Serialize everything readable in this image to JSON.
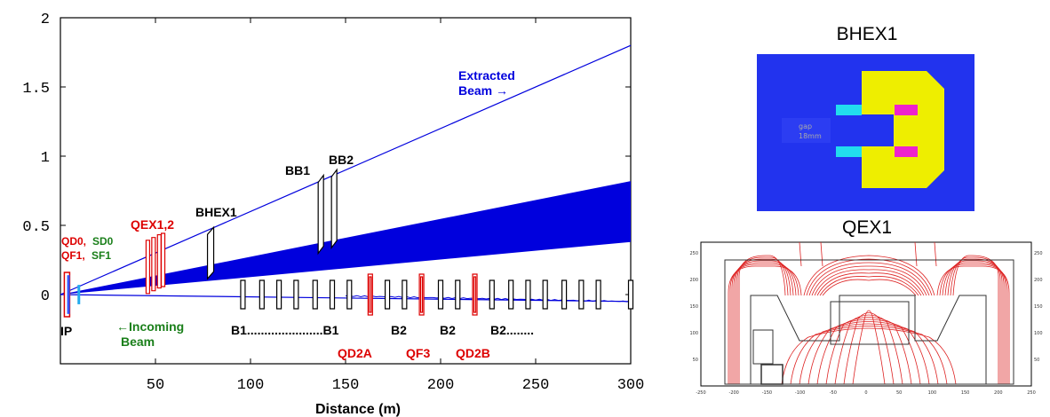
{
  "chart_data": {
    "type": "line",
    "xlabel": "Distance (m)",
    "xlim": [
      0,
      300
    ],
    "ylim": [
      -0.5,
      2
    ],
    "x_ticks": [
      "50",
      "100",
      "150",
      "200",
      "250",
      "300"
    ],
    "y_ticks": [
      "2",
      "1.5",
      "1",
      "0.5",
      "0"
    ],
    "series": [
      {
        "x": [
          0,
          300
        ],
        "y": [
          0,
          1.8
        ],
        "color": "#0000dd"
      },
      {
        "x": [
          0,
          300
        ],
        "y": [
          0,
          -0.05
        ],
        "color": "#0000dd"
      }
    ],
    "band": {
      "x": [
        0,
        300
      ],
      "upper": [
        0,
        0.82
      ],
      "lower": [
        0,
        0.38
      ],
      "color": "#0000dd"
    },
    "colors": {
      "beam": "#0000dd",
      "quad_red": "#dd0000",
      "sext_green": "#1a7f1a",
      "magnet": "#000000"
    }
  },
  "labels": {
    "extracted": [
      "Extracted",
      "Beam →"
    ],
    "incoming": [
      "←Incoming",
      "Beam"
    ],
    "ip": "IP",
    "qd0": "QD0,",
    "sd0": "SD0",
    "qf1": "QF1,",
    "sf1": "SF1",
    "qex": "QEX1,2",
    "bhex": "BHEX1",
    "bb1": "BB1",
    "bb2": "BB2",
    "b1_row": "B1......................B1",
    "b2a": "B2",
    "b2b": "B2",
    "b2c": "B2........",
    "qd2a": "QD2A",
    "qf3": "QF3",
    "qd2b": "QD2B"
  },
  "panels": {
    "bhex_title": "BHEX1",
    "qex_title": "QEX1",
    "bhex_inner_text": [
      "gap",
      "18mm"
    ],
    "qex_axis_x": [
      "-250",
      "-200",
      "-150",
      "-100",
      "-50",
      "0",
      "50",
      "100",
      "150",
      "200",
      "250"
    ],
    "qex_axis_y": [
      "250",
      "200",
      "150",
      "100",
      "50"
    ],
    "qex_axis_y_right": [
      "250",
      "200",
      "150",
      "100",
      "50"
    ]
  }
}
